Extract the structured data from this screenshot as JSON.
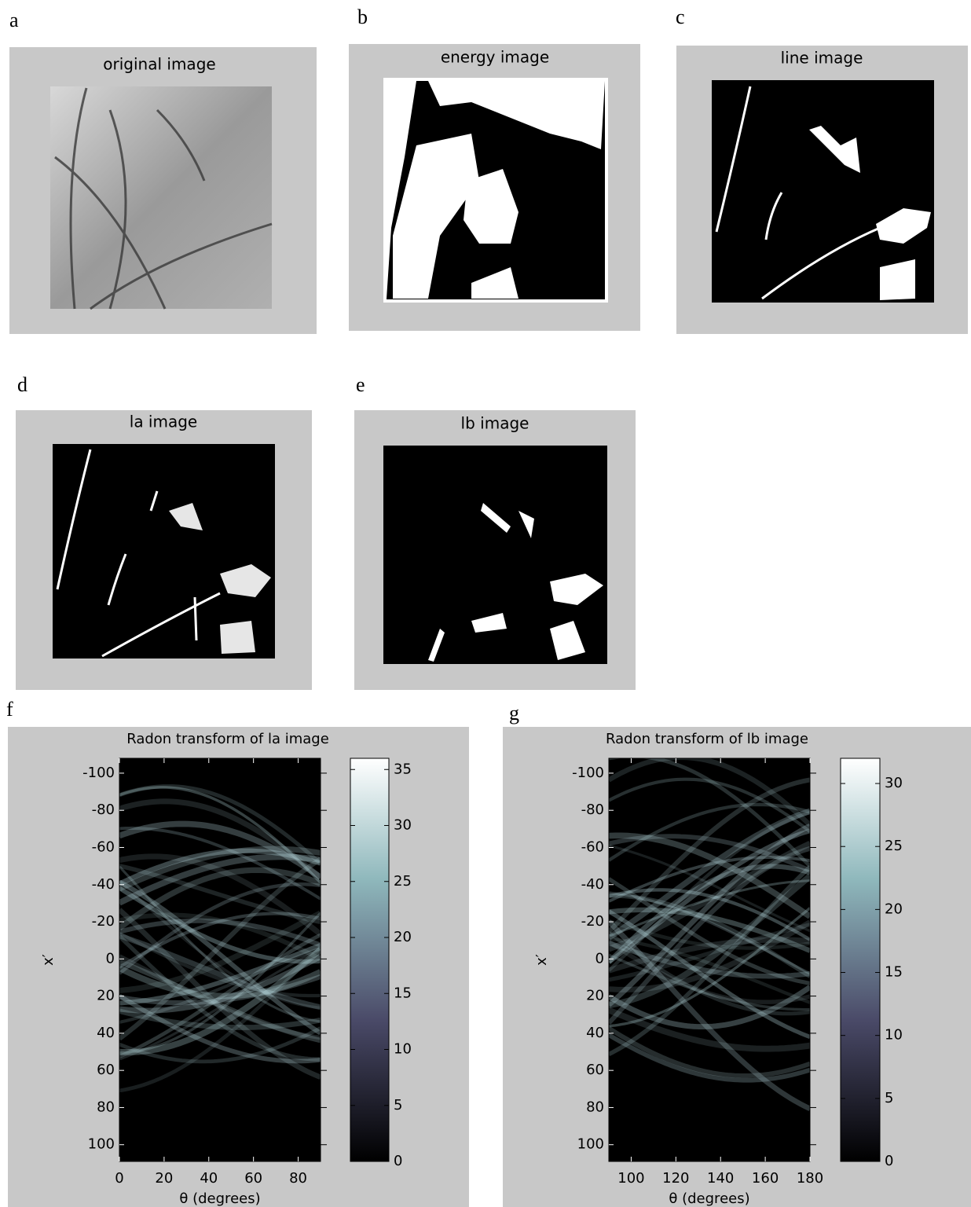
{
  "panels": [
    {
      "letter": "a",
      "title": "original image"
    },
    {
      "letter": "b",
      "title": "energy image"
    },
    {
      "letter": "c",
      "title": "line image"
    },
    {
      "letter": "d",
      "title": "la image"
    },
    {
      "letter": "e",
      "title": "lb image"
    }
  ],
  "plots": [
    {
      "letter": "f",
      "title": "Radon transform of la image",
      "xlabel": "θ (degrees)",
      "ylabel": "x′",
      "xlim": [
        0,
        90
      ],
      "xticks": [
        0,
        20,
        40,
        60,
        80
      ],
      "ylim": [
        -108,
        109
      ],
      "yticks": [
        -100,
        -80,
        -60,
        -40,
        -20,
        0,
        20,
        40,
        60,
        80,
        100
      ],
      "clim": [
        0,
        36
      ],
      "cticks": [
        0,
        5,
        10,
        15,
        20,
        25,
        30,
        35
      ]
    },
    {
      "letter": "g",
      "title": "Radon transform of lb image",
      "xlabel": "θ (degrees)",
      "ylabel": "x′",
      "xlim": [
        90,
        180
      ],
      "xticks": [
        100,
        120,
        140,
        160,
        180
      ],
      "ylim": [
        -108,
        109
      ],
      "yticks": [
        -100,
        -80,
        -60,
        -40,
        -20,
        0,
        20,
        40,
        60,
        80,
        100
      ],
      "clim": [
        0,
        32
      ],
      "cticks": [
        0,
        5,
        10,
        15,
        20,
        25,
        30
      ]
    }
  ]
}
